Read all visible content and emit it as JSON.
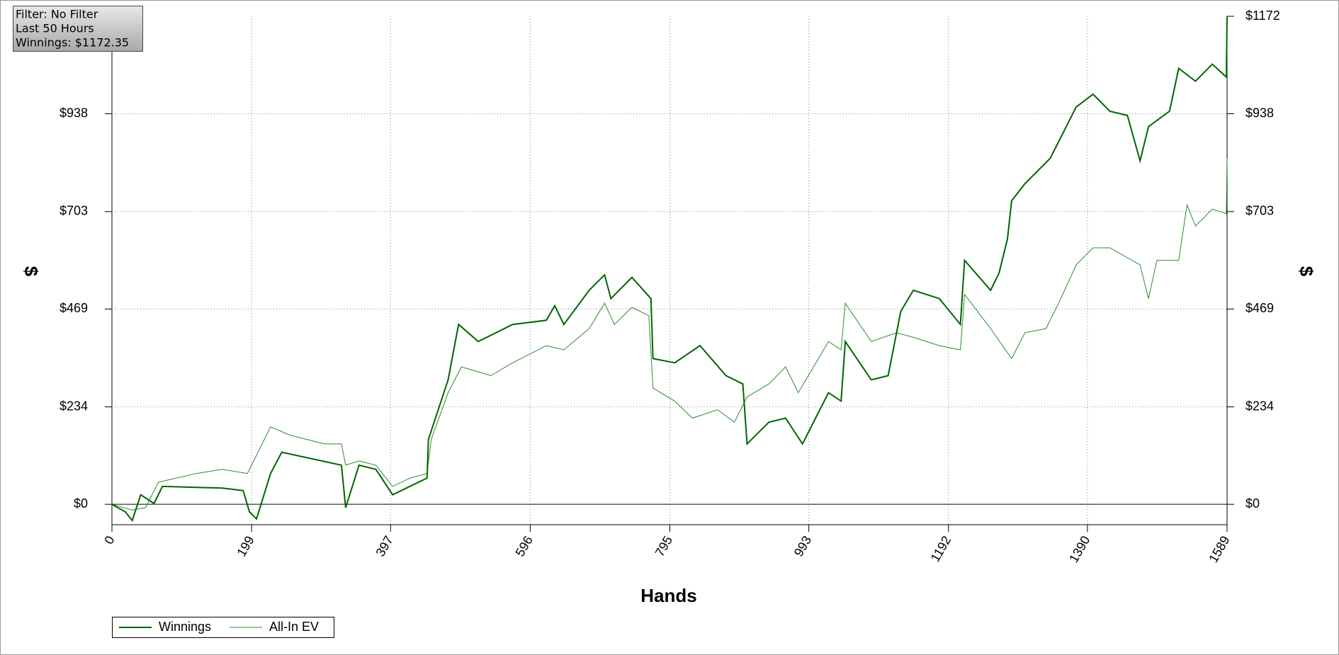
{
  "chart_data": {
    "type": "line",
    "x_label": "Hands",
    "y_label": "$",
    "y2_label": "$",
    "info": [
      "Filter: No Filter",
      "Last 50 Hours",
      "Winnings: $1172.35"
    ],
    "xlim": [
      0,
      1589
    ],
    "xticks": [
      0,
      199,
      397,
      596,
      795,
      993,
      1192,
      1390,
      1589
    ],
    "ylim": [
      -49,
      1172
    ],
    "yticks": [
      {
        "value": 0,
        "label": "$0"
      },
      {
        "value": 234,
        "label": "$234"
      },
      {
        "value": 469,
        "label": "$469"
      },
      {
        "value": 703,
        "label": "$703"
      },
      {
        "value": 938,
        "label": "$938"
      }
    ],
    "y2lim": [
      -49,
      1172
    ],
    "y2ticks": [
      {
        "value": 0,
        "label": "$0"
      },
      {
        "value": 234,
        "label": "$234"
      },
      {
        "value": 469,
        "label": "$469"
      },
      {
        "value": 703,
        "label": "$703"
      },
      {
        "value": 938,
        "label": "$938"
      },
      {
        "value": 1172,
        "label": "$1172"
      }
    ],
    "grid": true,
    "legend": "bottom-left",
    "series": [
      {
        "name": "Winnings",
        "color": "#006400",
        "x": [
          0,
          19,
          29,
          41,
          60,
          72,
          157,
          187,
          196,
          206,
          226,
          242,
          327,
          333,
          352,
          376,
          400,
          449,
          451,
          479,
          494,
          522,
          571,
          619,
          631,
          644,
          680,
          702,
          711,
          741,
          768,
          771,
          802,
          838,
          875,
          899,
          905,
          936,
          960,
          984,
          1021,
          1039,
          1045,
          1082,
          1106,
          1124,
          1142,
          1179,
          1209,
          1215,
          1252,
          1264,
          1276,
          1282,
          1301,
          1337,
          1374,
          1398,
          1422,
          1447,
          1465,
          1477,
          1507,
          1520,
          1544,
          1568,
          1588,
          1589
        ],
        "values": [
          0,
          -18,
          -39,
          23,
          2,
          43,
          39,
          33,
          -18,
          -35,
          74,
          125,
          94,
          -8,
          94,
          84,
          23,
          63,
          156,
          299,
          432,
          391,
          432,
          442,
          477,
          432,
          514,
          551,
          494,
          545,
          494,
          350,
          340,
          381,
          309,
          289,
          145,
          197,
          207,
          145,
          268,
          248,
          391,
          299,
          309,
          463,
          514,
          494,
          432,
          586,
          514,
          555,
          637,
          729,
          770,
          831,
          954,
          985,
          944,
          934,
          825,
          907,
          944,
          1047,
          1016,
          1057,
          1026,
          1172
        ]
      },
      {
        "name": "All-In EV",
        "color": "#2e8b2e",
        "x": [
          0,
          29,
          48,
          66,
          120,
          157,
          193,
          199,
          226,
          254,
          303,
          327,
          333,
          352,
          376,
          400,
          425,
          449,
          455,
          479,
          498,
          540,
          571,
          619,
          644,
          680,
          702,
          716,
          741,
          765,
          771,
          802,
          827,
          863,
          887,
          905,
          936,
          960,
          978,
          1021,
          1039,
          1045,
          1082,
          1118,
          1142,
          1179,
          1209,
          1215,
          1252,
          1282,
          1301,
          1331,
          1349,
          1374,
          1398,
          1422,
          1465,
          1477,
          1489,
          1520,
          1532,
          1544,
          1568,
          1588,
          1589
        ],
        "values": [
          0,
          -14,
          -8,
          53,
          74,
          84,
          74,
          94,
          186,
          166,
          145,
          145,
          94,
          104,
          94,
          43,
          63,
          74,
          156,
          268,
          330,
          309,
          340,
          381,
          371,
          422,
          483,
          432,
          473,
          453,
          279,
          248,
          207,
          227,
          197,
          258,
          289,
          330,
          268,
          391,
          371,
          483,
          391,
          412,
          401,
          381,
          371,
          504,
          422,
          350,
          412,
          422,
          483,
          575,
          616,
          616,
          575,
          494,
          586,
          586,
          719,
          668,
          709,
          698,
          831
        ]
      }
    ]
  }
}
